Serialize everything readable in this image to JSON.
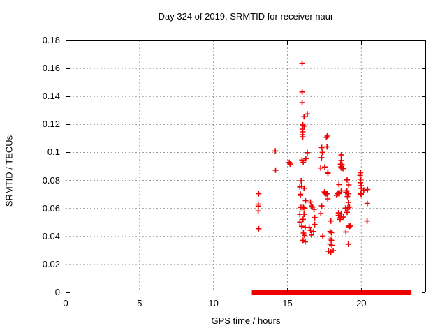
{
  "chart_data": {
    "type": "scatter",
    "title": "Day 324 of 2019, SRMTID for receiver naur",
    "xlabel": "GPS time / hours",
    "ylabel": "SRMTID / TECUs",
    "xlim": [
      0,
      24.38
    ],
    "ylim": [
      0,
      0.18
    ],
    "xticks": [
      0,
      5,
      10,
      15,
      20
    ],
    "xtick_labels": [
      "0",
      "5",
      "10",
      "15",
      "20"
    ],
    "yticks": [
      0,
      0.02,
      0.04,
      0.06,
      0.08,
      0.1,
      0.12,
      0.14,
      0.16,
      0.18
    ],
    "ytick_labels": [
      "0",
      "0.02",
      "0.04",
      "0.06",
      "0.08",
      "0.1",
      "0.12",
      "0.14",
      "0.16",
      "0.18"
    ],
    "grid": true,
    "legend": "none",
    "marker": "plus",
    "marker_color": "#ee0000",
    "grid_color": "#9a9a9a",
    "border_color": "#000000",
    "series": [
      {
        "name": "srmtid",
        "points": [
          [
            16.0,
            0.1637
          ],
          [
            16.0,
            0.1432
          ],
          [
            16.0,
            0.1356
          ],
          [
            16.35,
            0.1275
          ],
          [
            16.12,
            0.1255
          ],
          [
            16.04,
            0.1197
          ],
          [
            16.13,
            0.1188
          ],
          [
            16.01,
            0.1167
          ],
          [
            16.04,
            0.1147
          ],
          [
            16.01,
            0.1127
          ],
          [
            16.04,
            0.1112
          ],
          [
            17.7,
            0.1117
          ],
          [
            17.64,
            0.1108
          ],
          [
            17.32,
            0.1035
          ],
          [
            17.68,
            0.104
          ],
          [
            14.18,
            0.101
          ],
          [
            17.37,
            0.1
          ],
          [
            16.35,
            0.0998
          ],
          [
            16.25,
            0.0956
          ],
          [
            15.99,
            0.0946
          ],
          [
            16.07,
            0.0929
          ],
          [
            15.13,
            0.0929
          ],
          [
            15.18,
            0.0917
          ],
          [
            17.31,
            0.0963
          ],
          [
            14.2,
            0.0873
          ],
          [
            17.25,
            0.0889
          ],
          [
            17.53,
            0.0896
          ],
          [
            17.73,
            0.0858
          ],
          [
            17.74,
            0.0851
          ],
          [
            18.64,
            0.0982
          ],
          [
            18.64,
            0.0943
          ],
          [
            18.6,
            0.0916
          ],
          [
            18.7,
            0.0911
          ],
          [
            18.63,
            0.0897
          ],
          [
            18.76,
            0.0885
          ],
          [
            18.65,
            0.0889
          ],
          [
            19.95,
            0.0855
          ],
          [
            19.92,
            0.0836
          ],
          [
            19.97,
            0.0809
          ],
          [
            19.94,
            0.0784
          ],
          [
            19.99,
            0.0763
          ],
          [
            20.0,
            0.0743
          ],
          [
            20.17,
            0.0731
          ],
          [
            19.97,
            0.0706
          ],
          [
            19.99,
            0.0701
          ],
          [
            20.42,
            0.0735
          ],
          [
            20.4,
            0.0635
          ],
          [
            20.39,
            0.051
          ],
          [
            13.06,
            0.0705
          ],
          [
            13.03,
            0.063
          ],
          [
            13.03,
            0.0617
          ],
          [
            13.02,
            0.0582
          ],
          [
            13.06,
            0.0455
          ],
          [
            15.93,
            0.0798
          ],
          [
            15.84,
            0.0754
          ],
          [
            15.96,
            0.0759
          ],
          [
            16.12,
            0.0744
          ],
          [
            15.88,
            0.0701
          ],
          [
            15.87,
            0.0693
          ],
          [
            16.23,
            0.0656
          ],
          [
            15.92,
            0.0607
          ],
          [
            16.08,
            0.0607
          ],
          [
            16.17,
            0.0602
          ],
          [
            15.84,
            0.0558
          ],
          [
            16.12,
            0.0558
          ],
          [
            16.06,
            0.0522
          ],
          [
            15.84,
            0.0502
          ],
          [
            15.97,
            0.0472
          ],
          [
            16.2,
            0.0465
          ],
          [
            16.09,
            0.0424
          ],
          [
            16.16,
            0.0407
          ],
          [
            16.06,
            0.0372
          ],
          [
            16.2,
            0.0361
          ],
          [
            16.56,
            0.0645
          ],
          [
            16.63,
            0.0618
          ],
          [
            16.7,
            0.061
          ],
          [
            16.8,
            0.0593
          ],
          [
            16.47,
            0.0465
          ],
          [
            16.56,
            0.0444
          ],
          [
            16.63,
            0.041
          ],
          [
            16.78,
            0.0435
          ],
          [
            16.85,
            0.0485
          ],
          [
            16.85,
            0.0535
          ],
          [
            17.32,
            0.0618
          ],
          [
            17.26,
            0.0563
          ],
          [
            17.39,
            0.0402
          ],
          [
            17.51,
            0.0718
          ],
          [
            17.53,
            0.071
          ],
          [
            17.62,
            0.0704
          ],
          [
            17.7,
            0.0705
          ],
          [
            17.73,
            0.0668
          ],
          [
            17.94,
            0.051
          ],
          [
            17.89,
            0.0435
          ],
          [
            17.98,
            0.0427
          ],
          [
            17.89,
            0.0382
          ],
          [
            17.98,
            0.0372
          ],
          [
            17.89,
            0.0344
          ],
          [
            18.01,
            0.0336
          ],
          [
            17.78,
            0.0294
          ],
          [
            17.94,
            0.0289
          ],
          [
            18.1,
            0.0299
          ],
          [
            18.33,
            0.0693
          ],
          [
            18.41,
            0.0705
          ],
          [
            18.46,
            0.0568
          ],
          [
            18.46,
            0.055
          ],
          [
            18.49,
            0.0771
          ],
          [
            18.64,
            0.0726
          ],
          [
            18.49,
            0.0714
          ],
          [
            18.52,
            0.0706
          ],
          [
            18.96,
            0.0714
          ],
          [
            19.09,
            0.0705
          ],
          [
            19.04,
            0.0804
          ],
          [
            19.15,
            0.0768
          ],
          [
            19.03,
            0.0726
          ],
          [
            19.11,
            0.0709
          ],
          [
            19.06,
            0.0685
          ],
          [
            19.12,
            0.0643
          ],
          [
            19.09,
            0.0605
          ],
          [
            19.2,
            0.061
          ],
          [
            18.93,
            0.0602
          ],
          [
            19.04,
            0.0572
          ],
          [
            18.64,
            0.056
          ],
          [
            18.49,
            0.0548
          ],
          [
            18.57,
            0.0532
          ],
          [
            18.57,
            0.0522
          ],
          [
            18.8,
            0.0538
          ],
          [
            19.15,
            0.0477
          ],
          [
            19.24,
            0.0474
          ],
          [
            19.17,
            0.0468
          ],
          [
            18.96,
            0.0432
          ],
          [
            19.12,
            0.0344
          ]
        ]
      }
    ],
    "baseline_y": 0,
    "baseline_segments": [
      [
        12.69,
        12.85
      ],
      [
        12.97,
        13.13
      ],
      [
        13.21,
        14.39
      ],
      [
        14.5,
        14.7
      ],
      [
        14.86,
        14.99
      ],
      [
        15.1,
        15.97
      ],
      [
        16.07,
        16.39
      ],
      [
        16.47,
        17.54
      ],
      [
        17.62,
        17.81
      ],
      [
        17.89,
        19.04
      ],
      [
        19.12,
        19.18
      ],
      [
        19.28,
        20.22
      ],
      [
        20.3,
        20.62
      ],
      [
        20.72,
        21.32
      ],
      [
        21.48,
        22.11
      ],
      [
        22.24,
        22.66
      ],
      [
        22.74,
        23.3
      ]
    ]
  }
}
